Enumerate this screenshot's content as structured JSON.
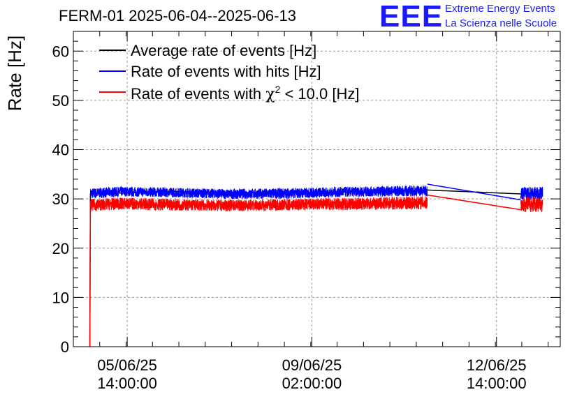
{
  "header": {
    "title": "FERM-01 2025-06-04--2025-06-13",
    "logo_mark": "EEE",
    "logo_line1": "Extreme Energy Events",
    "logo_line2": "La Scienza nelle Scuole"
  },
  "chart_data": {
    "type": "line",
    "title": "FERM-01 2025-06-04--2025-06-13",
    "ylabel": "Rate [Hz]",
    "xlabel": "",
    "ylim": [
      0,
      64
    ],
    "xlim": [
      "2025-06-04T13:30:00",
      "2025-06-13T19:00:00"
    ],
    "y_ticks": [
      0,
      10,
      20,
      30,
      40,
      50,
      60
    ],
    "x_ticks": [
      {
        "t": "2025-06-05T14:00:00",
        "line1": "05/06/25",
        "line2": "14:00:00"
      },
      {
        "t": "2025-06-09T02:00:00",
        "line1": "09/06/25",
        "line2": "02:00:00"
      },
      {
        "t": "2025-06-12T14:00:00",
        "line1": "12/06/25",
        "line2": "14:00:00"
      }
    ],
    "grid": true,
    "legend_position": "top-left",
    "series": [
      {
        "name": "Average rate of events [Hz]",
        "name_html": "Average rate of events [Hz]",
        "color": "#000000",
        "points": [
          [
            "2025-06-04T21:00:00",
            0
          ],
          [
            "2025-06-04T21:15:00",
            31.0
          ],
          [
            "2025-06-06T12:00:00",
            31.5
          ],
          [
            "2025-06-08T12:00:00",
            31.2
          ],
          [
            "2025-06-10T12:00:00",
            31.5
          ],
          [
            "2025-06-11T06:30:00",
            31.8
          ],
          [
            "2025-06-13T01:00:00",
            31.0
          ],
          [
            "2025-06-13T11:00:00",
            31.0
          ]
        ]
      },
      {
        "name": "Rate of events with hits [Hz]",
        "color": "#0000ff",
        "band": [
          [
            "2025-06-04T21:15:00",
            30.0,
            32.2
          ],
          [
            "2025-06-05T12:00:00",
            30.5,
            32.5
          ],
          [
            "2025-06-06T12:00:00",
            30.3,
            32.3
          ],
          [
            "2025-06-07T12:00:00",
            30.0,
            32.0
          ],
          [
            "2025-06-08T12:00:00",
            30.0,
            32.2
          ],
          [
            "2025-06-09T12:00:00",
            30.3,
            32.4
          ],
          [
            "2025-06-10T12:00:00",
            30.5,
            32.6
          ],
          [
            "2025-06-11T06:30:00",
            30.5,
            32.8
          ],
          [
            "2025-06-13T01:00:00",
            29.8,
            32.5
          ],
          [
            "2025-06-13T11:00:00",
            29.8,
            32.5
          ]
        ],
        "gap": [
          "2025-06-11T06:30:00",
          "2025-06-13T01:00:00"
        ],
        "gap_line": [
          [
            "2025-06-11T06:30:00",
            33.0
          ],
          [
            "2025-06-13T01:00:00",
            29.8
          ]
        ]
      },
      {
        "name": "Rate of events with χ² < 10.0 [Hz]",
        "color": "#ff0000",
        "band": [
          [
            "2025-06-04T21:15:00",
            27.5,
            30.0
          ],
          [
            "2025-06-05T12:00:00",
            27.8,
            30.3
          ],
          [
            "2025-06-06T12:00:00",
            27.6,
            30.0
          ],
          [
            "2025-06-07T12:00:00",
            27.5,
            29.8
          ],
          [
            "2025-06-08T12:00:00",
            27.6,
            30.0
          ],
          [
            "2025-06-09T12:00:00",
            27.7,
            30.2
          ],
          [
            "2025-06-10T12:00:00",
            27.8,
            30.4
          ],
          [
            "2025-06-11T06:30:00",
            27.9,
            30.6
          ],
          [
            "2025-06-13T01:00:00",
            27.3,
            30.5
          ],
          [
            "2025-06-13T11:00:00",
            27.3,
            30.5
          ]
        ],
        "gap": [
          "2025-06-11T06:30:00",
          "2025-06-13T01:00:00"
        ],
        "gap_line": [
          [
            "2025-06-11T06:30:00",
            30.8
          ],
          [
            "2025-06-13T01:00:00",
            27.8
          ]
        ]
      }
    ]
  },
  "legend": {
    "item1": "Average rate of events [Hz]",
    "item2": "Rate of events with hits [Hz]",
    "item3_prefix": "Rate of events with ",
    "item3_chi": "χ",
    "item3_sup": "2",
    "item3_suffix": " < 10.0 [Hz]"
  }
}
